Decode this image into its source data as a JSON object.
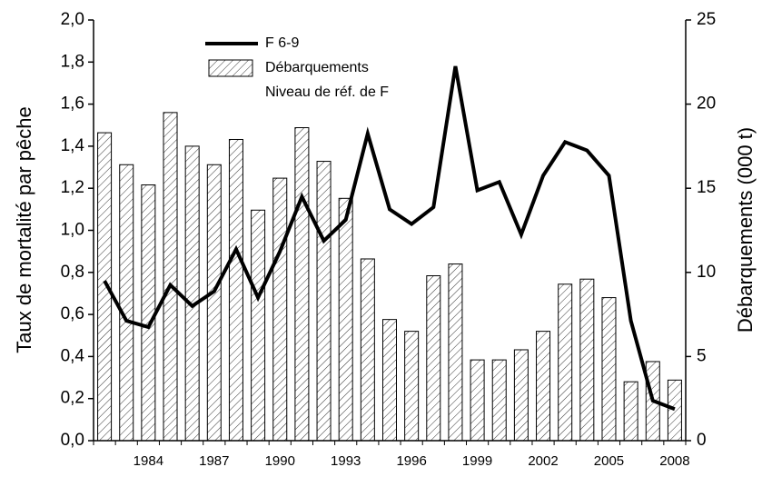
{
  "chart_data": {
    "type": "bar_line",
    "ylabel": "Taux de mortalité par pêche",
    "y2label": "Débarquements (000 t)",
    "categories": [
      null,
      null,
      "1984",
      null,
      null,
      "1987",
      null,
      null,
      "1990",
      null,
      null,
      "1993",
      null,
      null,
      "1996",
      null,
      null,
      "1999",
      null,
      null,
      "2002",
      null,
      null,
      "2005",
      null,
      null,
      "2008"
    ],
    "series": [
      {
        "name": "F 6-9",
        "type": "line",
        "color": "#000000",
        "axis": "y",
        "values": [
          0.76,
          0.57,
          0.54,
          0.74,
          0.64,
          0.71,
          0.91,
          0.68,
          0.9,
          1.16,
          0.95,
          1.05,
          1.46,
          1.1,
          1.03,
          1.11,
          1.78,
          1.19,
          1.23,
          0.98,
          1.26,
          1.42,
          1.38,
          1.26,
          0.57,
          0.19,
          0.15
        ]
      },
      {
        "name": "Débarquements",
        "type": "bar",
        "color": "#000000",
        "hatch": true,
        "axis": "y2",
        "values": [
          18.3,
          16.4,
          15.2,
          19.5,
          17.5,
          16.4,
          17.9,
          13.7,
          15.6,
          18.6,
          16.6,
          14.4,
          10.8,
          7.2,
          6.5,
          9.8,
          10.5,
          4.8,
          4.8,
          5.4,
          6.5,
          9.3,
          9.6,
          8.5,
          3.5,
          4.7,
          3.6
        ]
      }
    ],
    "legend_note": "Niveau de réf. de F",
    "ylim": [
      0,
      2
    ],
    "yticks": [
      {
        "value": 0,
        "label": "0,0"
      },
      {
        "value": 0.2,
        "label": "0,2"
      },
      {
        "value": 0.4,
        "label": "0,4"
      },
      {
        "value": 0.6,
        "label": "0,6"
      },
      {
        "value": 0.8,
        "label": "0,8"
      },
      {
        "value": 1,
        "label": "1,0"
      },
      {
        "value": 1.2,
        "label": "1,2"
      },
      {
        "value": 1.4,
        "label": "1,4"
      },
      {
        "value": 1.6,
        "label": "1,6"
      },
      {
        "value": 1.8,
        "label": "1,8"
      },
      {
        "value": 2,
        "label": "2,0"
      }
    ],
    "y2lim": [
      0,
      25
    ],
    "y2ticks": [
      0,
      5,
      10,
      15,
      20,
      25
    ],
    "grid": false
  }
}
